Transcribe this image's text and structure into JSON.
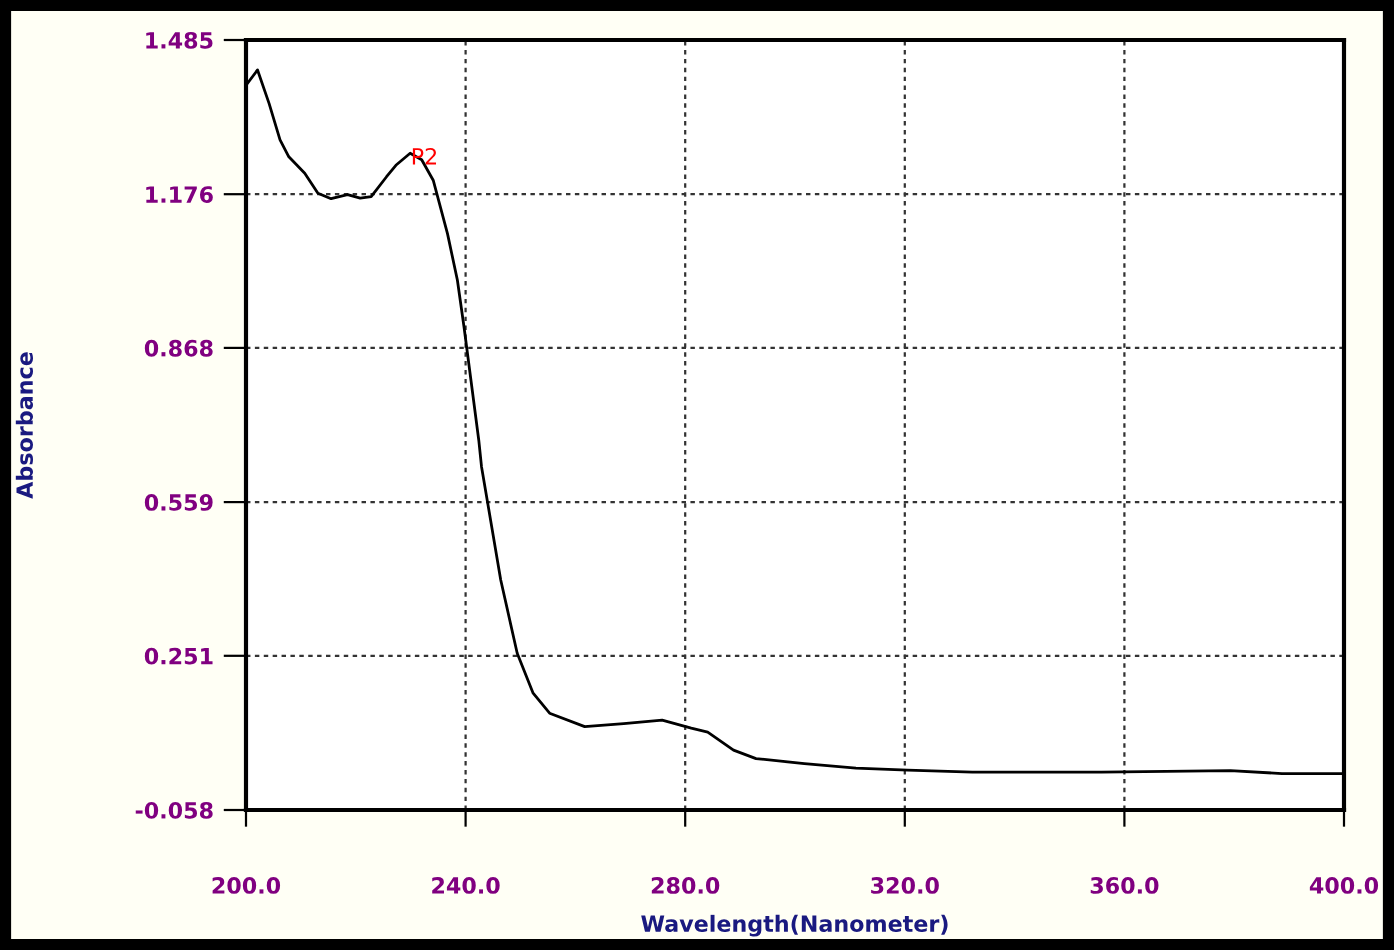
{
  "chart_data": {
    "type": "line",
    "xlabel": "Wavelength(Nanometer)",
    "ylabel": "Absorbance",
    "xlim": [
      200,
      400
    ],
    "ylim": [
      -0.058,
      1.485
    ],
    "xticks": [
      {
        "value": 200,
        "label": "200.0"
      },
      {
        "value": 240,
        "label": "240.0"
      },
      {
        "value": 280,
        "label": "280.0"
      },
      {
        "value": 320,
        "label": "320.0"
      },
      {
        "value": 360,
        "label": "360.0"
      },
      {
        "value": 400,
        "label": "400.0"
      }
    ],
    "yticks": [
      -0.058,
      0.251,
      0.559,
      0.868,
      1.176,
      1.485
    ],
    "grid": true,
    "line_style": "solid",
    "marker": "none",
    "annotations": [
      {
        "text": "P2",
        "x": 230,
        "y": 1.258
      }
    ],
    "series": [
      {
        "color": "#000000",
        "x": [
          200,
          202.1,
          204.2,
          206.2,
          207.8,
          210.7,
          213.1,
          215.5,
          218.5,
          220.8,
          222.8,
          225.6,
          227.3,
          229.9,
          232.0,
          234.1,
          236.7,
          238.5,
          239.7,
          242.4,
          242.9,
          246.4,
          249.4,
          252.3,
          255.3,
          261.7,
          268.8,
          275.8,
          281.1,
          284.1,
          288.8,
          292.9,
          301.7,
          311.1,
          320.5,
          332.3,
          355.8,
          379.3,
          388.7,
          399.9
        ],
        "values": [
          1.394,
          1.425,
          1.358,
          1.285,
          1.251,
          1.218,
          1.178,
          1.167,
          1.175,
          1.168,
          1.171,
          1.211,
          1.234,
          1.258,
          1.245,
          1.204,
          1.097,
          1.004,
          0.911,
          0.683,
          0.63,
          0.403,
          0.256,
          0.176,
          0.136,
          0.109,
          0.115,
          0.122,
          0.106,
          0.098,
          0.062,
          0.045,
          0.035,
          0.026,
          0.022,
          0.018,
          0.018,
          0.021,
          0.015,
          0.015
        ]
      }
    ]
  }
}
